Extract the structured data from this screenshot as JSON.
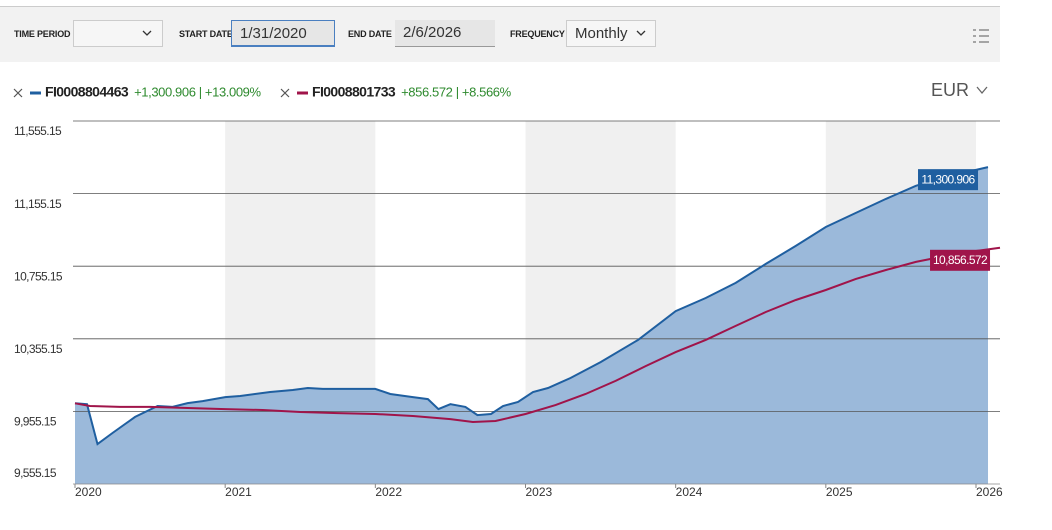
{
  "toolbar": {
    "time_period_label": "TIME PERIOD",
    "start_date_label": "START DATE",
    "start_date": "1/31/2020",
    "end_date_label": "END DATE",
    "end_date": "2/6/2026",
    "frequency_label": "FREQUENCY",
    "frequency": "Monthly"
  },
  "currency": "EUR",
  "chart_data": {
    "type": "line",
    "series": [
      {
        "name": "FI0008804463",
        "change": "+1,300.906 | +13.009%",
        "color": "#1f5fa0",
        "area_color": "#9bb9da",
        "area": true,
        "last_label": "11,300.906",
        "x": [
          2020.0,
          2020.08,
          2020.15,
          2020.25,
          2020.4,
          2020.55,
          2020.65,
          2020.75,
          2020.85,
          2021.0,
          2021.1,
          2021.3,
          2021.45,
          2021.55,
          2021.65,
          2021.8,
          2022.0,
          2022.1,
          2022.25,
          2022.35,
          2022.42,
          2022.5,
          2022.6,
          2022.68,
          2022.77,
          2022.85,
          2022.95,
          2023.05,
          2023.15,
          2023.3,
          2023.5,
          2023.75,
          2024.0,
          2024.2,
          2024.4,
          2024.6,
          2024.8,
          2025.0,
          2025.2,
          2025.4,
          2025.6,
          2025.8,
          2026.0,
          2026.08
        ],
        "values": [
          10000,
          9995,
          9775,
          9836,
          9925,
          9985,
          9980,
          10001,
          10012,
          10034,
          10040,
          10062,
          10073,
          10084,
          10079,
          10079,
          10079,
          10051,
          10034,
          10023,
          9968,
          9995,
          9980,
          9935,
          9941,
          9985,
          10007,
          10062,
          10084,
          10139,
          10227,
          10349,
          10508,
          10580,
          10663,
          10768,
          10867,
          10971,
          11049,
          11126,
          11198,
          11247,
          11286,
          11300.906
        ]
      },
      {
        "name": "FI0008801733",
        "change": "+856.572 | +8.566%",
        "color": "#a0144a",
        "area": false,
        "last_label": "10,856.572",
        "x": [
          2020.0,
          2020.1,
          2020.3,
          2020.5,
          2020.75,
          2021.0,
          2021.25,
          2021.5,
          2021.75,
          2022.0,
          2022.25,
          2022.5,
          2022.65,
          2022.8,
          2023.0,
          2023.2,
          2023.4,
          2023.6,
          2023.8,
          2024.0,
          2024.2,
          2024.4,
          2024.6,
          2024.8,
          2025.0,
          2025.2,
          2025.4,
          2025.6,
          2025.8,
          2026.0,
          2026.16
        ],
        "values": [
          10000,
          9985,
          9980,
          9980,
          9974,
          9968,
          9963,
          9952,
          9946,
          9941,
          9930,
          9913,
          9897,
          9902,
          9941,
          9990,
          10051,
          10123,
          10205,
          10282,
          10349,
          10426,
          10503,
          10569,
          10624,
          10685,
          10734,
          10779,
          10812,
          10839,
          10856.572
        ]
      }
    ],
    "xlim": [
      2020,
      2026
    ],
    "xticks": [
      2020,
      2021,
      2022,
      2023,
      2024,
      2025,
      2026
    ],
    "ylim": [
      9555.15,
      11555.15
    ],
    "yticks": [
      {
        "value": 9555.15,
        "label": "9,555.15"
      },
      {
        "value": 9955.15,
        "label": "9,955.15"
      },
      {
        "value": 10355.15,
        "label": "10,355.15"
      },
      {
        "value": 10755.15,
        "label": "10,755.15"
      },
      {
        "value": 11155.15,
        "label": "11,155.15"
      },
      {
        "value": 11555.15,
        "label": "11,555.15"
      }
    ],
    "grid": true
  }
}
